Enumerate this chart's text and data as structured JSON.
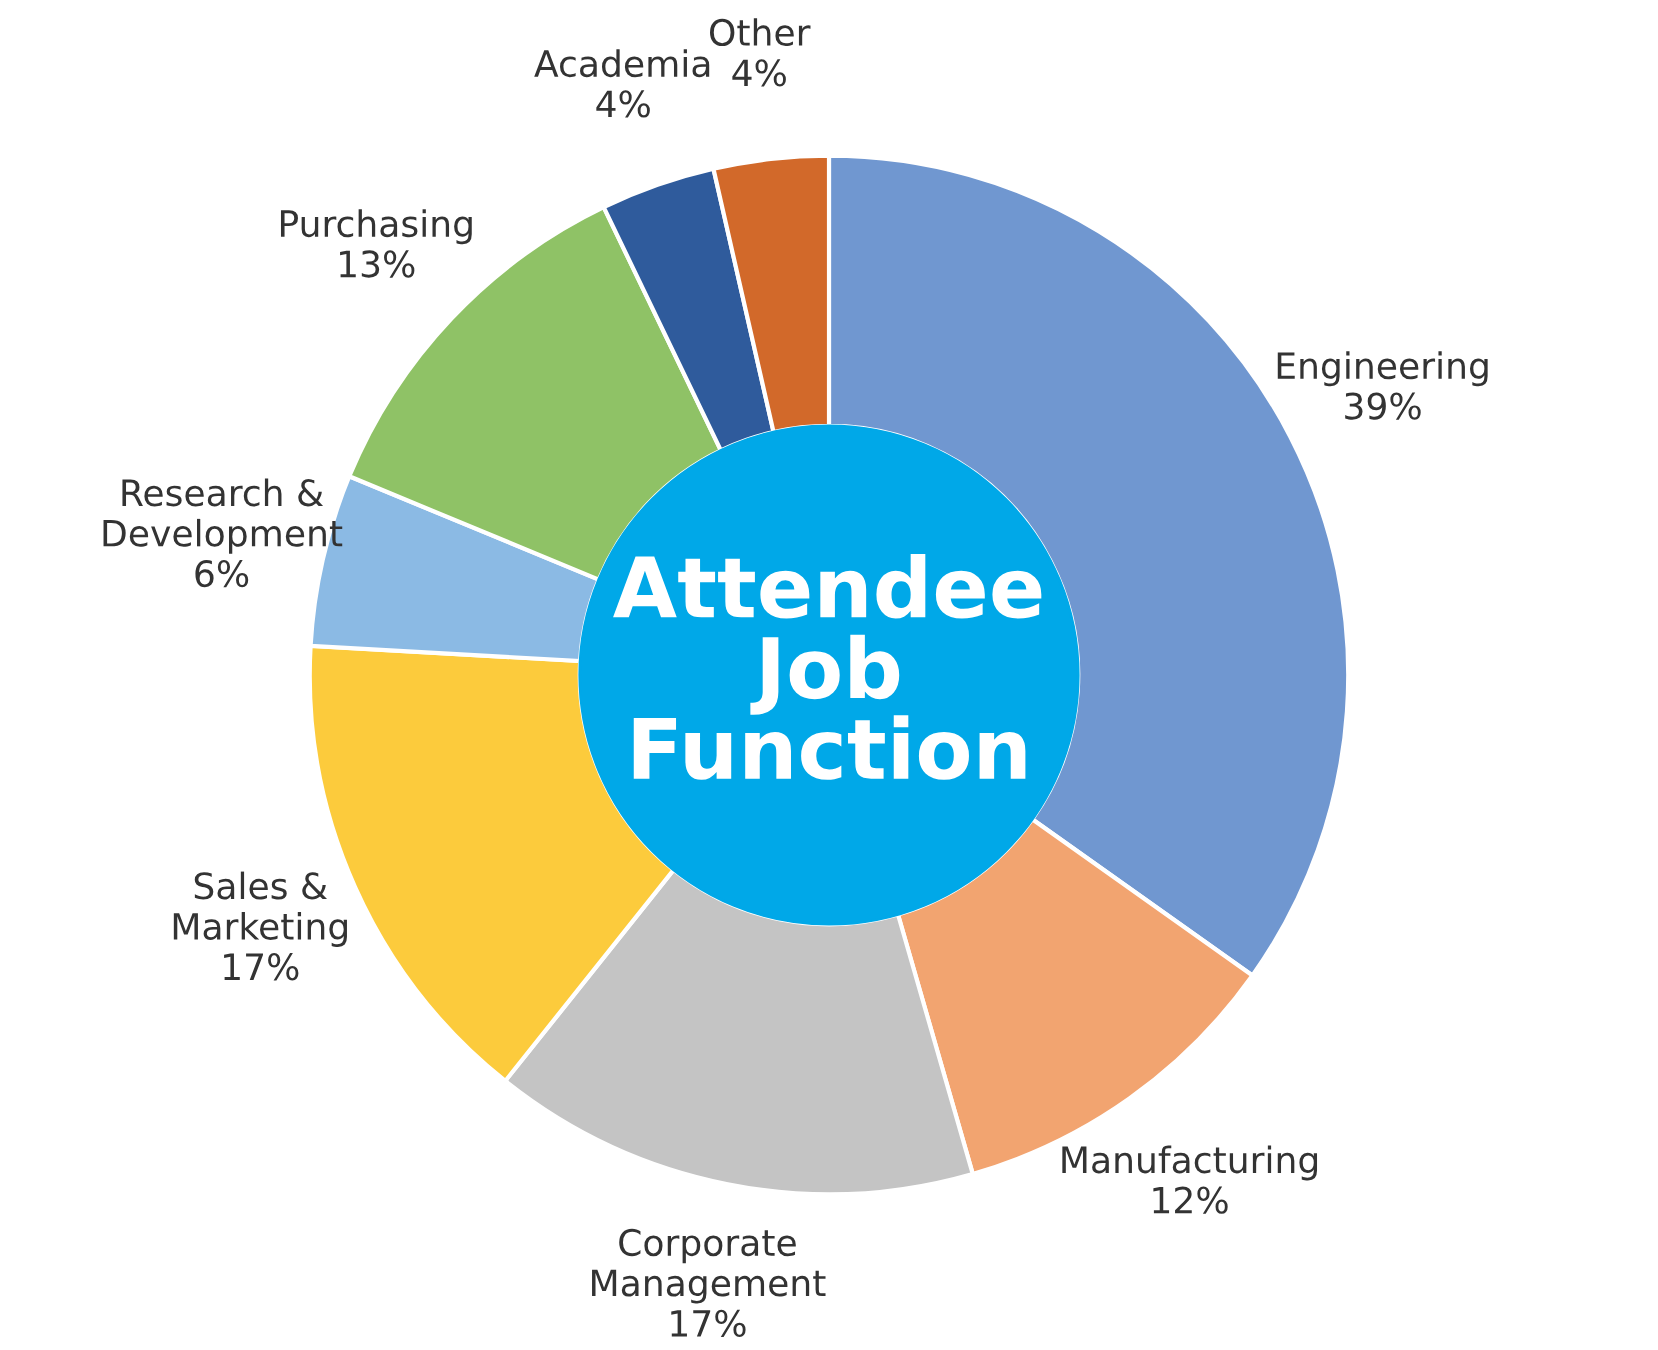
{
  "chart_data": {
    "type": "donut",
    "title": "Attendee Job Function",
    "categories": [
      "Engineering",
      "Manufacturing",
      "Corporate\nManagement",
      "Sales &\nMarketing",
      "Research &\nDevelopment",
      "Purchasing",
      "Academia",
      "Other"
    ],
    "values": [
      39,
      12,
      17,
      17,
      6,
      13,
      4,
      4
    ],
    "value_labels": [
      "39%",
      "12%",
      "17%",
      "17%",
      "6%",
      "13%",
      "4%",
      "4%"
    ],
    "colors": [
      "#7097d0",
      "#f2a470",
      "#c4c4c4",
      "#fccb3c",
      "#8bbae4",
      "#8fc266",
      "#2f5b9c",
      "#d2692a"
    ]
  }
}
